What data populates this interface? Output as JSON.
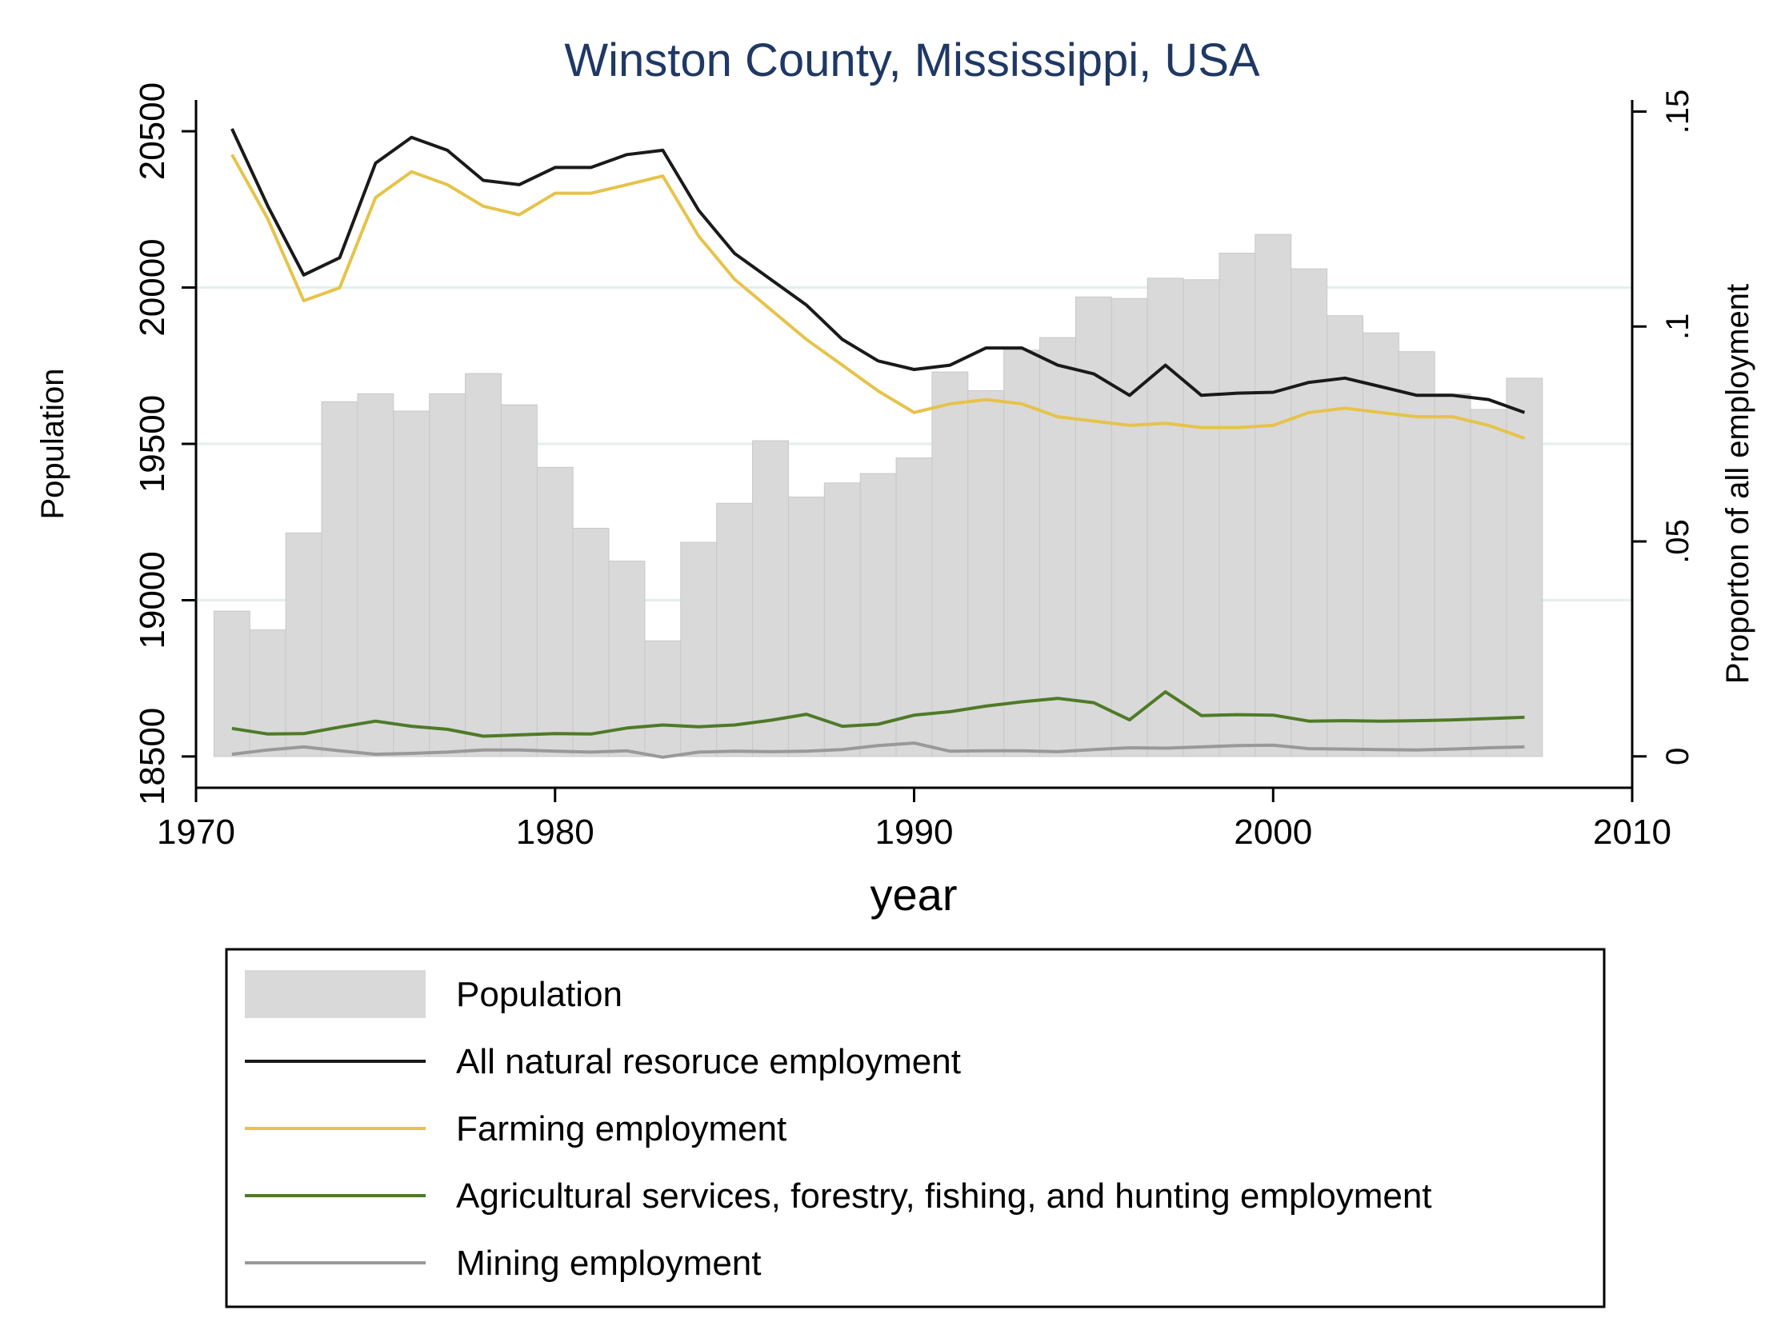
{
  "chart_data": {
    "type": "bar+line",
    "title": "Winston County, Mississippi, USA",
    "xlabel": "year",
    "ylabel_left": "Population",
    "ylabel_right": "Proporton of all employment",
    "xlim": [
      1970,
      2010
    ],
    "ylim_left": [
      18400,
      20600
    ],
    "ylim_right": [
      -0.0073,
      0.1527
    ],
    "x_ticks": [
      1970,
      1980,
      1990,
      2000,
      2010
    ],
    "x_tick_labels": [
      "1970",
      "1980",
      "1990",
      "2000",
      "2010"
    ],
    "y_left_ticks": [
      18500,
      19000,
      19500,
      20000,
      20500
    ],
    "y_left_tick_labels": [
      "18500",
      "19000",
      "19500",
      "20000",
      "20500"
    ],
    "y_right_ticks": [
      0,
      0.05,
      0.1,
      0.15
    ],
    "y_right_tick_labels": [
      "0",
      ".05",
      ".1",
      ".15"
    ],
    "gridlines_left": [
      19000,
      19500,
      20000
    ],
    "years": [
      1971,
      1972,
      1973,
      1974,
      1975,
      1976,
      1977,
      1978,
      1979,
      1980,
      1981,
      1982,
      1983,
      1984,
      1985,
      1986,
      1987,
      1988,
      1989,
      1990,
      1991,
      1992,
      1993,
      1994,
      1995,
      1996,
      1997,
      1998,
      1999,
      2000,
      2001,
      2002,
      2003,
      2004,
      2005,
      2006,
      2007
    ],
    "population": [
      18965,
      18905,
      19215,
      19635,
      19660,
      19605,
      19660,
      19725,
      19625,
      19425,
      19230,
      19125,
      18870,
      19185,
      19310,
      19510,
      19330,
      19375,
      19405,
      19455,
      19730,
      19670,
      19800,
      19840,
      19970,
      19965,
      20030,
      20025,
      20110,
      20170,
      20060,
      19910,
      19855,
      19795,
      19660,
      19610,
      19710
    ],
    "series": [
      {
        "name": "All natural resoruce employment",
        "color": "#1a1a1a",
        "values": [
          0.146,
          0.128,
          0.112,
          0.116,
          0.138,
          0.144,
          0.141,
          0.134,
          0.133,
          0.137,
          0.137,
          0.14,
          0.141,
          0.127,
          0.117,
          0.111,
          0.105,
          0.097,
          0.092,
          0.09,
          0.091,
          0.095,
          0.095,
          0.091,
          0.089,
          0.084,
          0.091,
          0.084,
          0.0845,
          0.0847,
          0.087,
          0.088,
          0.086,
          0.084,
          0.084,
          0.083,
          0.08
        ]
      },
      {
        "name": "Farming employment",
        "color": "#e6c34a",
        "values": [
          0.14,
          0.125,
          0.106,
          0.109,
          0.13,
          0.136,
          0.133,
          0.128,
          0.126,
          0.131,
          0.131,
          0.133,
          0.135,
          0.121,
          0.111,
          0.104,
          0.097,
          0.091,
          0.085,
          0.08,
          0.082,
          0.083,
          0.082,
          0.079,
          0.078,
          0.077,
          0.0775,
          0.0765,
          0.0765,
          0.077,
          0.08,
          0.081,
          0.08,
          0.079,
          0.079,
          0.077,
          0.074
        ]
      },
      {
        "name": "Agricultural services, forestry, fishing, and hunting employment",
        "color": "#4f7a28",
        "values": [
          0.0065,
          0.0052,
          0.0053,
          0.0068,
          0.0082,
          0.007,
          0.0063,
          0.0047,
          0.005,
          0.0053,
          0.0052,
          0.0066,
          0.0073,
          0.0069,
          0.0073,
          0.0084,
          0.0098,
          0.007,
          0.0075,
          0.0096,
          0.0104,
          0.0117,
          0.0127,
          0.0135,
          0.0125,
          0.0085,
          0.015,
          0.0095,
          0.0097,
          0.0096,
          0.0082,
          0.0083,
          0.0082,
          0.0083,
          0.0085,
          0.0088,
          0.0091
        ]
      },
      {
        "name": "Mining employment",
        "color": "#999999",
        "values": [
          0.0005,
          0.0015,
          0.0022,
          0.0013,
          0.0005,
          0.0007,
          0.001,
          0.0015,
          0.0015,
          0.0012,
          0.001,
          0.0013,
          -0.0002,
          0.001,
          0.0012,
          0.0011,
          0.0012,
          0.0016,
          0.0025,
          0.0031,
          0.0012,
          0.0013,
          0.0013,
          0.0011,
          0.0016,
          0.002,
          0.0019,
          0.0022,
          0.0025,
          0.0026,
          0.0018,
          0.0017,
          0.0016,
          0.0015,
          0.0017,
          0.002,
          0.0022
        ]
      }
    ],
    "legend": {
      "position": "bottom",
      "entries": [
        {
          "label": "Population",
          "kind": "bar",
          "color": "#d9d9d9"
        },
        {
          "label": "All natural resoruce employment",
          "kind": "line",
          "color": "#1a1a1a"
        },
        {
          "label": "Farming employment",
          "kind": "line",
          "color": "#e6c34a"
        },
        {
          "label": "Agricultural services, forestry, fishing, and hunting employment",
          "kind": "line",
          "color": "#4f7a28"
        },
        {
          "label": "Mining employment",
          "kind": "line",
          "color": "#999999"
        }
      ]
    }
  }
}
